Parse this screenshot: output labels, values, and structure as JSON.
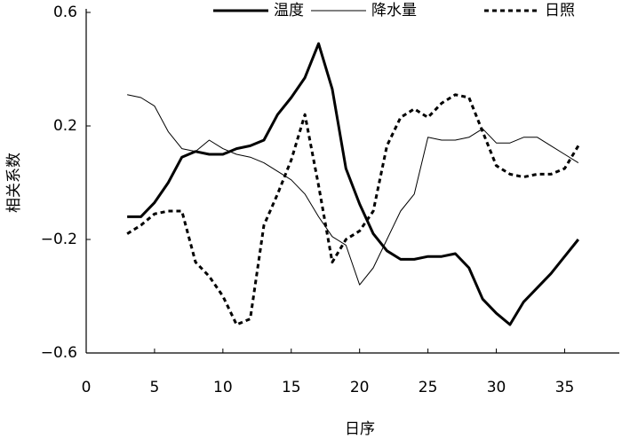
{
  "chart_data": {
    "type": "line",
    "x_label": "日序",
    "y_label": "相关系数",
    "x": [
      3,
      4,
      5,
      6,
      7,
      8,
      9,
      10,
      11,
      12,
      13,
      14,
      15,
      16,
      17,
      18,
      19,
      20,
      21,
      22,
      23,
      24,
      25,
      26,
      27,
      28,
      29,
      30,
      31,
      32,
      33,
      34,
      35,
      36
    ],
    "series": [
      {
        "name": "温度",
        "color": "#000000",
        "linestyle": "solid",
        "linewidth": 3,
        "values": [
          -0.12,
          -0.12,
          -0.07,
          0.0,
          0.09,
          0.11,
          0.1,
          0.1,
          0.12,
          0.13,
          0.15,
          0.24,
          0.3,
          0.37,
          0.49,
          0.33,
          0.05,
          -0.075,
          -0.18,
          -0.24,
          -0.27,
          -0.27,
          -0.26,
          -0.26,
          -0.25,
          -0.3,
          -0.41,
          -0.46,
          -0.5,
          -0.42,
          -0.37,
          -0.32,
          -0.26,
          -0.2
        ]
      },
      {
        "name": "降水量",
        "color": "#000000",
        "linestyle": "solid",
        "linewidth": 1,
        "values": [
          0.31,
          0.3,
          0.27,
          0.18,
          0.12,
          0.11,
          0.15,
          0.12,
          0.1,
          0.09,
          0.07,
          0.04,
          0.01,
          -0.04,
          -0.12,
          -0.19,
          -0.22,
          -0.36,
          -0.3,
          -0.2,
          -0.1,
          -0.04,
          0.16,
          0.15,
          0.15,
          0.16,
          0.19,
          0.14,
          0.14,
          0.16,
          0.16,
          0.13,
          0.1,
          0.07
        ]
      },
      {
        "name": "日照",
        "color": "#000000",
        "linestyle": "dotted",
        "linewidth": 3,
        "values": [
          -0.18,
          -0.15,
          -0.11,
          -0.1,
          -0.1,
          -0.28,
          -0.33,
          -0.4,
          -0.5,
          -0.48,
          -0.15,
          -0.04,
          0.08,
          0.24,
          -0.01,
          -0.28,
          -0.2,
          -0.17,
          -0.1,
          0.13,
          0.23,
          0.26,
          0.23,
          0.28,
          0.31,
          0.3,
          0.18,
          0.06,
          0.03,
          0.02,
          0.03,
          0.03,
          0.05,
          0.13
        ]
      }
    ],
    "xlim": [
      0,
      39
    ],
    "xticks": [
      0,
      5,
      10,
      15,
      20,
      25,
      30,
      35
    ],
    "ylim": [
      -0.6,
      0.6
    ],
    "yticks": [
      {
        "value": -0.6,
        "label": "−0.6"
      },
      {
        "value": -0.2,
        "label": "−0.2"
      },
      0.2,
      0.6
    ],
    "legend": "top-right",
    "grid": false
  }
}
